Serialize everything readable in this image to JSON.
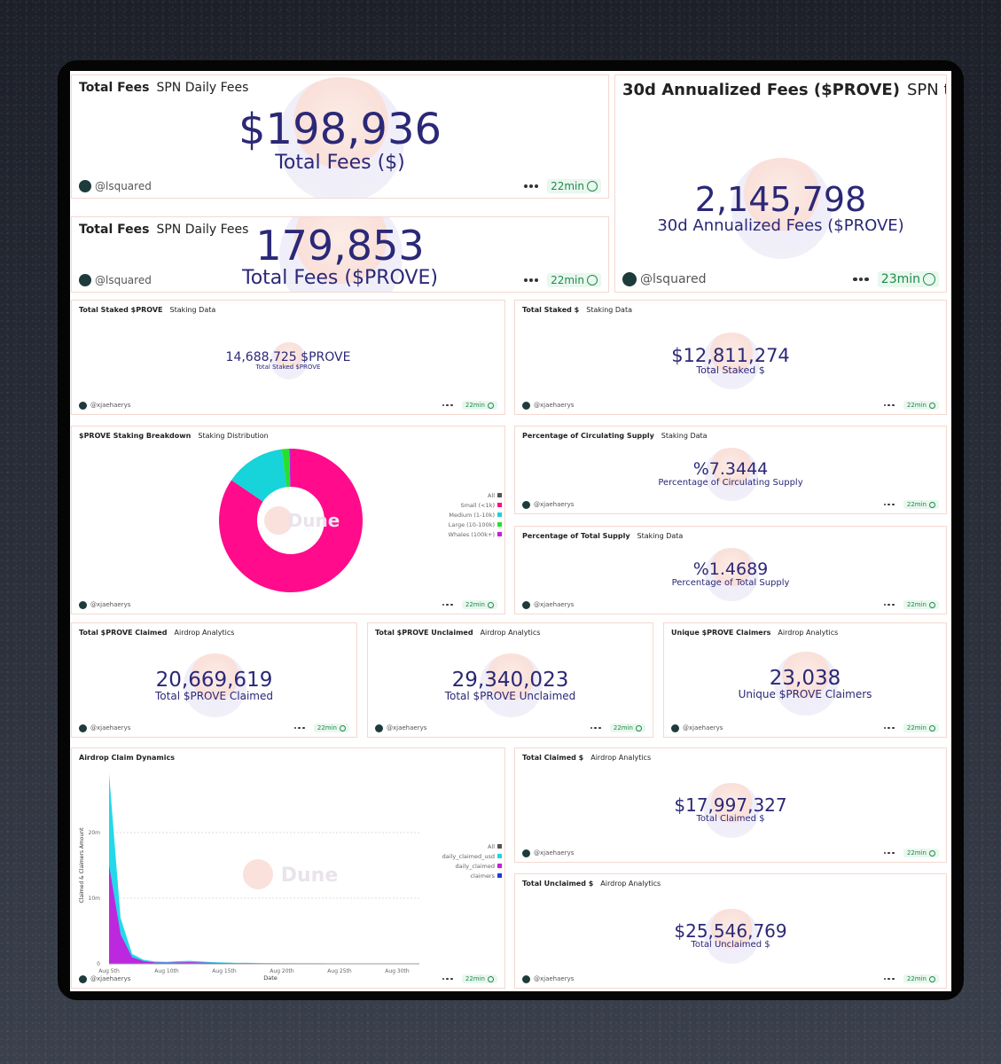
{
  "widgets": [
    {
      "title": "Total Fees",
      "tab": "SPN Daily Fees",
      "value": "$198,936",
      "label": "Total Fees ($)",
      "author": "@lsquared",
      "age": "22min"
    },
    {
      "title": "Total Fees",
      "tab": "SPN Daily Fees",
      "value": "179,853",
      "label": "Total Fees ($PROVE)",
      "author": "@lsquared",
      "age": "22min"
    },
    {
      "title": "30d Annualized Fees ($PROVE)",
      "tab": "SPN to...",
      "value": "2,145,798",
      "label": "30d Annualized Fees ($PROVE)",
      "author": "@lsquared",
      "age": "23min"
    },
    {
      "title": "Total Staked $PROVE",
      "tab": "Staking Data",
      "value": "14,688,725 $PROVE",
      "label": "Total Staked $PROVE",
      "author": "@xjaehaerys",
      "age": "22min"
    },
    {
      "title": "Total Staked $",
      "tab": "Staking Data",
      "value": "$12,811,274",
      "label": "Total Staked $",
      "author": "@xjaehaerys",
      "age": "22min"
    },
    {
      "title": "$PROVE Staking Breakdown",
      "tab": "Staking Distribution",
      "author": "@xjaehaerys",
      "age": "22min",
      "watermark": "Dune",
      "chart_data": {
        "type": "pie",
        "legend_toggle": "All",
        "categories": [
          "Small (<1k)",
          "Medium (1-10k)",
          "Large (10-100k)",
          "Whales (100k+)"
        ],
        "values": [
          84.5,
          13.5,
          1.7,
          0.3
        ],
        "colors": [
          "#ff0b8c",
          "#17d3da",
          "#27e02c",
          "#c41fdc"
        ]
      }
    },
    {
      "title": "Percentage of Circulating Supply",
      "tab": "Staking Data",
      "value": "%7.3444",
      "label": "Percentage of Circulating Supply",
      "author": "@xjaehaerys",
      "age": "22min"
    },
    {
      "title": "Percentage of Total Supply",
      "tab": "Staking Data",
      "value": "%1.4689",
      "label": "Percentage of Total Supply",
      "author": "@xjaehaerys",
      "age": "22min"
    },
    {
      "title": "Total $PROVE Claimed",
      "tab": "Airdrop Analytics",
      "value": "20,669,619",
      "label": "Total $PROVE Claimed",
      "author": "@xjaehaerys",
      "age": "22min"
    },
    {
      "title": "Total $PROVE Unclaimed",
      "tab": "Airdrop Analytics",
      "value": "29,340,023",
      "label": "Total $PROVE Unclaimed",
      "author": "@xjaehaerys",
      "age": "22min"
    },
    {
      "title": "Unique $PROVE Claimers",
      "tab": "Airdrop Analytics",
      "value": "23,038",
      "label": "Unique $PROVE Claimers",
      "author": "@xjaehaerys",
      "age": "22min"
    },
    {
      "title": "Airdrop Claim Dynamics",
      "author": "@xjaehaerys",
      "age": "22min",
      "watermark": "Dune",
      "chart_data": {
        "type": "area",
        "legend_toggle": "All",
        "xlabel": "Date",
        "ylabel": "Claimed & Claimers Amount",
        "categories": [
          "Aug 5th",
          null,
          null,
          null,
          null,
          "Aug 10th",
          null,
          null,
          null,
          null,
          "Aug 15th",
          null,
          null,
          null,
          null,
          "Aug 20th",
          null,
          null,
          null,
          null,
          "Aug 25th",
          null,
          null,
          null,
          null,
          "Aug 30th",
          null
        ],
        "ylim": [
          0,
          30000000
        ],
        "yticks": [
          0,
          {
            "value": 10000000,
            "label": "10m"
          },
          {
            "value": 20000000,
            "label": "20m"
          }
        ],
        "grid": true,
        "series": [
          {
            "name": "daily_claimed_usd",
            "color": "#19d6e8",
            "values": [
              29000000,
              7000000,
              1500000,
              600000,
              350000,
              300000,
              400000,
              450000,
              350000,
              250000,
              200000,
              150000,
              150000,
              120000,
              100000,
              100000,
              90000,
              80000,
              80000,
              70000,
              70000,
              60000,
              60000,
              50000,
              50000,
              50000,
              40000
            ]
          },
          {
            "name": "daily_claimed",
            "color": "#c41fdc",
            "values": [
              15000000,
              4500000,
              1000000,
              400000,
              200000,
              180000,
              220000,
              250000,
              200000,
              150000,
              120000,
              90000,
              90000,
              70000,
              60000,
              60000,
              50000,
              50000,
              50000,
              40000,
              40000,
              35000,
              35000,
              30000,
              30000,
              30000,
              25000
            ]
          },
          {
            "name": "claimers",
            "color": "#1a3dd6",
            "values": [
              9000,
              3000,
              900,
              400,
              250,
              200,
              220,
              230,
              200,
              160,
              140,
              120,
              110,
              100,
              90,
              85,
              80,
              75,
              70,
              65,
              60,
              55,
              55,
              50,
              50,
              48,
              45
            ]
          }
        ]
      }
    },
    {
      "title": "Total Claimed $",
      "tab": "Airdrop Analytics",
      "value": "$17,997,327",
      "label": "Total Claimed $",
      "author": "@xjaehaerys",
      "age": "22min"
    },
    {
      "title": "Total Unclaimed $",
      "tab": "Airdrop Analytics",
      "value": "$25,546,769",
      "label": "Total Unclaimed $",
      "author": "@xjaehaerys",
      "age": "22min"
    }
  ]
}
